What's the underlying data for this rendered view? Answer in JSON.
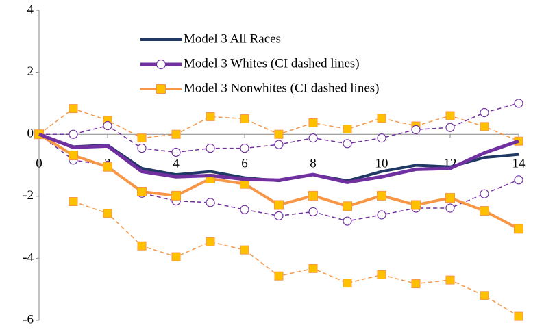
{
  "chart_data": {
    "type": "line",
    "x": [
      0,
      1,
      2,
      3,
      4,
      5,
      6,
      7,
      8,
      9,
      10,
      11,
      12,
      13,
      14
    ],
    "xlim": [
      0,
      14
    ],
    "xticks": [
      0,
      2,
      4,
      6,
      8,
      10,
      12,
      14
    ],
    "ylim": [
      -6,
      4
    ],
    "yticks": [
      -6,
      -4,
      -2,
      0,
      2,
      4
    ],
    "series": [
      {
        "name": "Model 3 All Races",
        "color": "#1f3864",
        "width": 4,
        "values": [
          0,
          -0.4,
          -0.35,
          -1.1,
          -1.3,
          -1.2,
          -1.4,
          -1.5,
          -1.3,
          -1.5,
          -1.2,
          -1.0,
          -1.05,
          -0.75,
          -0.65
        ]
      },
      {
        "name": "Model 3 Whites (CI dashed lines)",
        "color": "#7030a0",
        "width": 5,
        "marker": "circle",
        "markers_on_line": false,
        "values": [
          0,
          -0.42,
          -0.38,
          -1.2,
          -1.37,
          -1.33,
          -1.45,
          -1.48,
          -1.3,
          -1.55,
          -1.37,
          -1.13,
          -1.1,
          -0.6,
          -0.22
        ]
      },
      {
        "name": "Model 3 Nonwhites (CI dashed lines)",
        "color": "#f79646",
        "marker_fill": "#ffc000",
        "width": 4,
        "marker": "square",
        "markers_on_line": true,
        "values": [
          0,
          -0.68,
          -1.05,
          -1.85,
          -1.98,
          -1.43,
          -1.6,
          -2.28,
          -1.98,
          -2.32,
          -1.98,
          -2.28,
          -2.05,
          -2.47,
          -3.05
        ]
      },
      {
        "color": "#7030a0",
        "width": 1.5,
        "dashed": true,
        "marker": "circle",
        "markers_on_line": true,
        "values": [
          0,
          0.0,
          0.28,
          -0.45,
          -0.58,
          -0.45,
          -0.45,
          -0.33,
          -0.12,
          -0.3,
          -0.12,
          0.15,
          0.22,
          0.7,
          1.0
        ]
      },
      {
        "color": "#7030a0",
        "width": 1.5,
        "dashed": true,
        "marker": "circle",
        "markers_on_line": true,
        "values": [
          0,
          -0.83,
          -1.0,
          -1.9,
          -2.15,
          -2.2,
          -2.43,
          -2.63,
          -2.5,
          -2.8,
          -2.6,
          -2.38,
          -2.38,
          -1.92,
          -1.47
        ]
      },
      {
        "color": "#f79646",
        "marker_fill": "#ffc000",
        "width": 1.5,
        "dashed": true,
        "marker": "square",
        "markers_on_line": true,
        "values": [
          0,
          0.83,
          0.45,
          -0.12,
          0,
          0.57,
          0.5,
          0,
          0.37,
          0.17,
          0.52,
          0.27,
          0.6,
          0.25,
          -0.22
        ]
      },
      {
        "color": "#f79646",
        "marker_fill": "#ffc000",
        "width": 1.5,
        "dashed": true,
        "marker": "square",
        "markers_on_line": true,
        "values": [
          null,
          -2.17,
          -2.55,
          -3.6,
          -3.95,
          -3.47,
          -3.73,
          -4.57,
          -4.33,
          -4.8,
          -4.53,
          -4.82,
          -4.7,
          -5.2,
          -5.87
        ]
      }
    ]
  }
}
